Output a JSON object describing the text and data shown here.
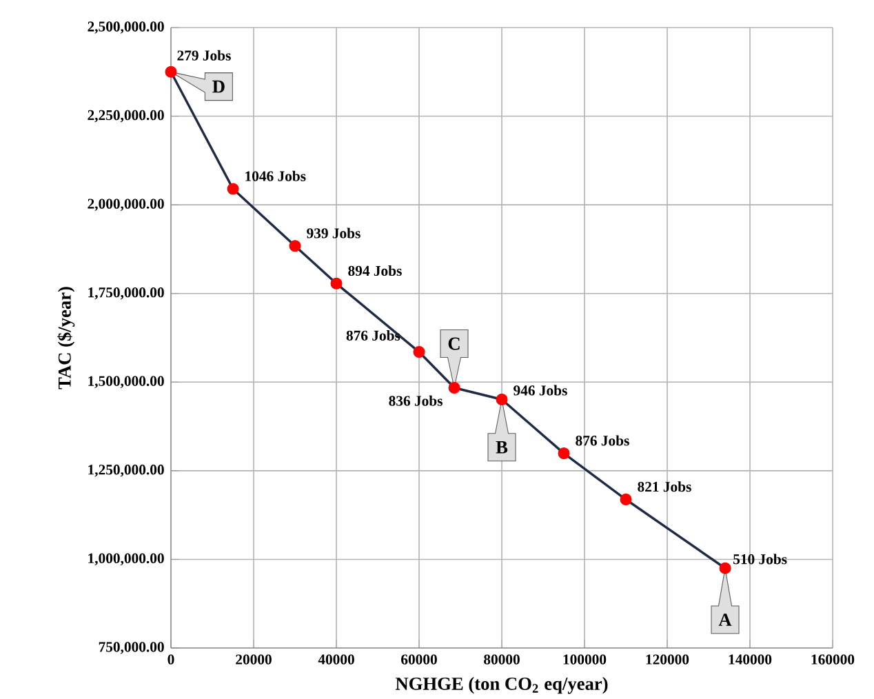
{
  "chart_data": {
    "type": "line",
    "xlabel": "NGHGE (ton CO$_{2}$ eq/year)",
    "ylabel": "TAC ($/year)",
    "x": [
      0,
      15000,
      30000,
      40000,
      60000,
      68500,
      80000,
      95000,
      110000,
      134000
    ],
    "values": [
      2375000,
      2045000,
      1884000,
      1778000,
      1585000,
      1484000,
      1451000,
      1299000,
      1169000,
      975000
    ],
    "color": "#1f2a44",
    "marker": "circle",
    "colors": [
      "#ff0000",
      "#ff0000",
      "#ff0000",
      "#ff0000",
      "#ff0000",
      "#ff0000",
      "#ff0000",
      "#ff0000",
      "#ff0000",
      "#ff0000"
    ],
    "line_style": "solid",
    "xlim": [
      0,
      160000
    ],
    "xticks": [
      0,
      20000,
      40000,
      60000,
      80000,
      100000,
      120000,
      140000,
      160000
    ],
    "ylim": [
      750000,
      2500000
    ],
    "yticks": [
      {
        "value": 750000,
        "label": "750,000.00"
      },
      {
        "value": 1000000,
        "label": "1,000,000.00"
      },
      {
        "value": 1250000,
        "label": "1,250,000.00"
      },
      {
        "value": 1500000,
        "label": "1,500,000.00"
      },
      {
        "value": 1750000,
        "label": "1,750,000.00"
      },
      {
        "value": 2000000,
        "label": "2,000,000.00"
      },
      {
        "value": 2250000,
        "label": "2,250,000.00"
      },
      {
        "value": 2500000,
        "label": "2,500,000.00"
      }
    ],
    "grid": true,
    "annotations": [
      {
        "text": "279  Jobs",
        "x": 0,
        "y": 2375000
      },
      {
        "text": "1046 Jobs",
        "x": 15000,
        "y": 2045000
      },
      {
        "text": "939 Jobs",
        "x": 30000,
        "y": 1884000
      },
      {
        "text": "894 Jobs",
        "x": 40000,
        "y": 1778000
      },
      {
        "text": "876 Jobs",
        "x": 60000,
        "y": 1585000
      },
      {
        "text": "836 Jobs",
        "x": 68500,
        "y": 1484000
      },
      {
        "text": "946 Jobs",
        "x": 80000,
        "y": 1451000
      },
      {
        "text": "876 Jobs",
        "x": 95000,
        "y": 1299000
      },
      {
        "text": "821 Jobs",
        "x": 110000,
        "y": 1169000
      },
      {
        "text": "510 Jobs",
        "x": 134000,
        "y": 975000
      },
      {
        "text": "D",
        "x": 0,
        "y": 2375000
      },
      {
        "text": "C",
        "x": 68500,
        "y": 1484000
      },
      {
        "text": "B",
        "x": 80000,
        "y": 1451000
      },
      {
        "text": "A",
        "x": 134000,
        "y": 975000
      }
    ]
  }
}
